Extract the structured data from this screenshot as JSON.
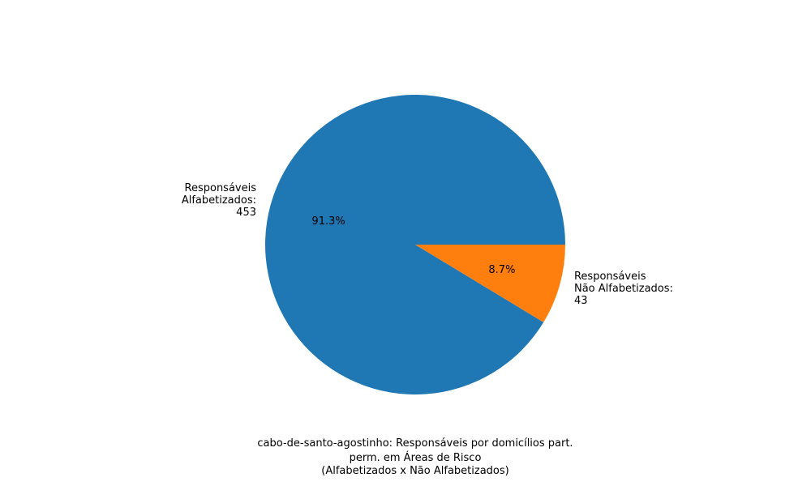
{
  "chart_data": {
    "type": "pie",
    "categories": [
      "Responsáveis Alfabetizados",
      "Responsáveis Não Alfabetizados"
    ],
    "values": [
      453,
      43
    ],
    "percent_labels": [
      "91.3%",
      "8.7%"
    ],
    "slice_labels": [
      [
        "Responsáveis",
        "Alfabetizados:",
        "453"
      ],
      [
        "Responsáveis",
        "Não Alfabetizados:",
        "43"
      ]
    ],
    "colors": [
      "#1f77b4",
      "#ff7f0e"
    ],
    "start_angle": 0,
    "direction": "counterclockwise",
    "caption_lines": [
      "cabo-de-santo-agostinho: Responsáveis por domicílios part.",
      "perm. em Áreas de Risco",
      "(Alfabetizados x Não Alfabetizados)"
    ]
  }
}
